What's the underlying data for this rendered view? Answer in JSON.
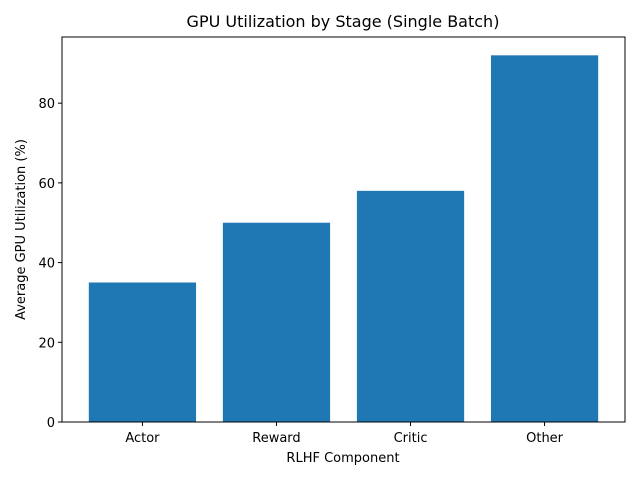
{
  "chart_data": {
    "type": "bar",
    "title": "GPU Utilization by Stage (Single Batch)",
    "xlabel": "RLHF Component",
    "ylabel": "Average GPU Utilization (%)",
    "categories": [
      "Actor",
      "Reward",
      "Critic",
      "Other"
    ],
    "values": [
      35,
      50,
      58,
      92
    ],
    "ylim": [
      0,
      96.6
    ],
    "yticks": [
      0,
      20,
      40,
      60,
      80
    ],
    "bar_color": "#1f77b4",
    "grid": false,
    "legend": "none"
  }
}
